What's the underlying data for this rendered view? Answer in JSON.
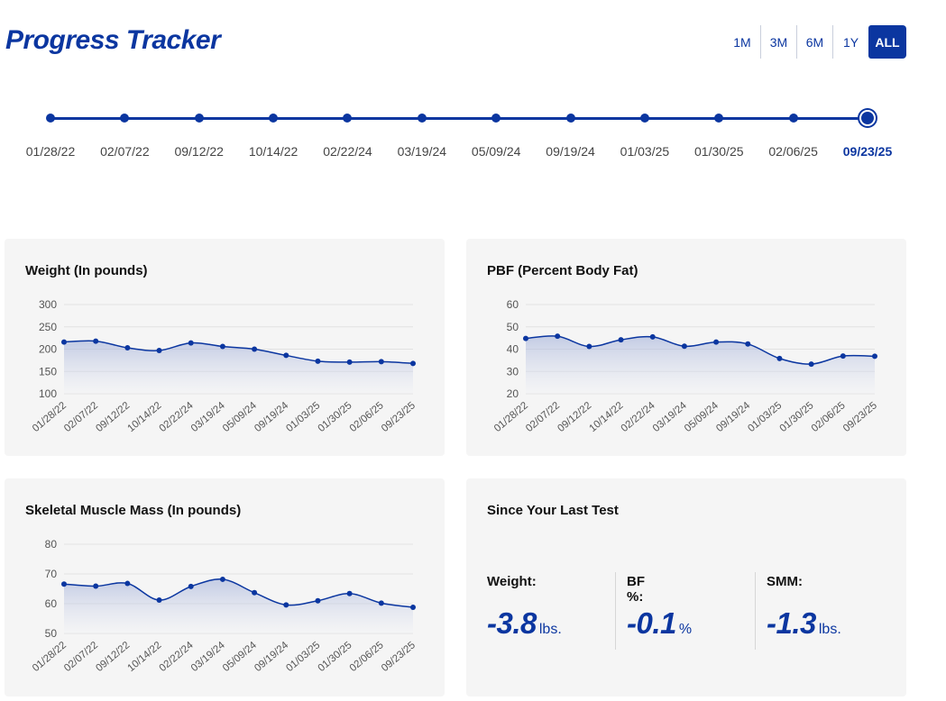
{
  "header": {
    "title": "Progress Tracker"
  },
  "range_buttons": [
    {
      "label": "1M",
      "active": false
    },
    {
      "label": "3M",
      "active": false
    },
    {
      "label": "6M",
      "active": false
    },
    {
      "label": "1Y",
      "active": false
    },
    {
      "label": "ALL",
      "active": true
    }
  ],
  "timeline": {
    "dates": [
      "01/28/22",
      "02/07/22",
      "09/12/22",
      "10/14/22",
      "02/22/24",
      "03/19/24",
      "05/09/24",
      "09/19/24",
      "01/03/25",
      "01/30/25",
      "02/06/25",
      "09/23/25"
    ],
    "selected_index": 11
  },
  "colors": {
    "brand": "#0b36a0",
    "card_bg": "#f5f5f5",
    "grid": "#e2e2e2"
  },
  "chart_data": [
    {
      "type": "area",
      "title": "Weight (In pounds)",
      "categories": [
        "01/28/22",
        "02/07/22",
        "09/12/22",
        "10/14/22",
        "02/22/24",
        "03/19/24",
        "05/09/24",
        "09/19/24",
        "01/03/25",
        "01/30/25",
        "02/06/25",
        "09/23/25"
      ],
      "values": [
        216,
        218,
        203,
        197,
        214,
        206,
        200,
        186,
        173,
        171,
        172,
        168
      ],
      "ylim": [
        100,
        300
      ],
      "yticks": [
        100,
        150,
        200,
        250,
        300
      ],
      "grid": true,
      "legend": "none"
    },
    {
      "type": "area",
      "title": "PBF (Percent Body Fat)",
      "categories": [
        "01/28/22",
        "02/07/22",
        "09/12/22",
        "10/14/22",
        "02/22/24",
        "03/19/24",
        "05/09/24",
        "09/19/24",
        "01/03/25",
        "01/30/25",
        "02/06/25",
        "09/23/25"
      ],
      "values": [
        44.8,
        45.8,
        41.2,
        44.2,
        45.5,
        41.3,
        43.2,
        42.3,
        35.8,
        33.3,
        36.9,
        36.8
      ],
      "ylim": [
        20,
        60
      ],
      "yticks": [
        20,
        30,
        40,
        50,
        60
      ],
      "grid": true,
      "legend": "none"
    },
    {
      "type": "area",
      "title": "Skeletal Muscle Mass (In pounds)",
      "categories": [
        "01/28/22",
        "02/07/22",
        "09/12/22",
        "10/14/22",
        "02/22/24",
        "03/19/24",
        "05/09/24",
        "09/19/24",
        "01/03/25",
        "01/30/25",
        "02/06/25",
        "09/23/25"
      ],
      "values": [
        66.6,
        65.9,
        66.8,
        61.2,
        65.8,
        68.2,
        63.7,
        59.6,
        61.0,
        63.4,
        60.2,
        58.8
      ],
      "ylim": [
        50,
        80
      ],
      "yticks": [
        50,
        60,
        70,
        80
      ],
      "grid": true,
      "legend": "none"
    }
  ],
  "summary": {
    "title": "Since Your Last Test",
    "stats": [
      {
        "label": "Weight:",
        "value": "-3.8",
        "unit": "lbs."
      },
      {
        "label": "BF %:",
        "value": "-0.1",
        "unit": "%"
      },
      {
        "label": "SMM:",
        "value": "-1.3",
        "unit": "lbs."
      }
    ]
  }
}
